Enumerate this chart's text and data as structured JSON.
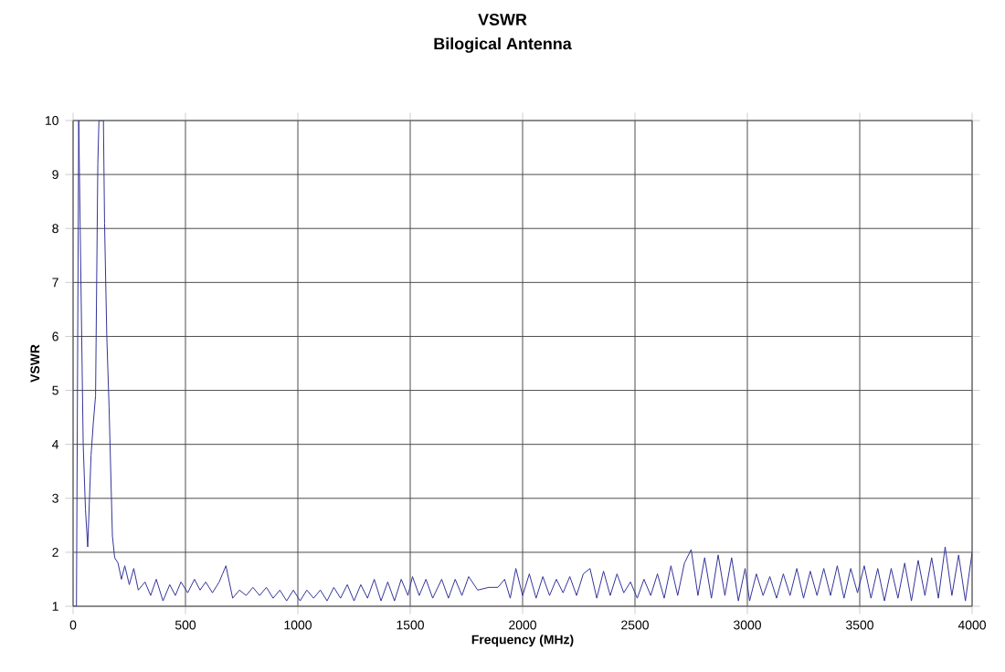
{
  "chart_data": {
    "type": "line",
    "title": "VSWR",
    "subtitle": "Bilogical Antenna",
    "xlabel": "Frequency (MHz)",
    "ylabel": "VSWR",
    "xlim": [
      0,
      4000
    ],
    "xticks": [
      0,
      500,
      1000,
      1500,
      2000,
      2500,
      3000,
      3500,
      4000
    ],
    "ylim": [
      1,
      10
    ],
    "yticks": [
      1,
      2,
      3,
      4,
      5,
      6,
      7,
      8,
      9,
      10
    ],
    "grid": true,
    "marker": "none",
    "line_style": "solid",
    "series": [
      {
        "color": "#333399",
        "x": [
          0,
          15,
          25,
          45,
          55,
          65,
          80,
          90,
          100,
          110,
          115,
          135,
          140,
          150,
          160,
          175,
          185,
          200,
          215,
          230,
          250,
          270,
          290,
          320,
          345,
          370,
          400,
          430,
          455,
          480,
          510,
          540,
          565,
          590,
          620,
          650,
          665,
          680,
          710,
          740,
          770,
          800,
          830,
          860,
          890,
          920,
          950,
          980,
          1010,
          1040,
          1070,
          1100,
          1130,
          1160,
          1190,
          1220,
          1250,
          1280,
          1310,
          1340,
          1370,
          1400,
          1430,
          1460,
          1490,
          1510,
          1540,
          1570,
          1600,
          1640,
          1670,
          1700,
          1730,
          1760,
          1800,
          1850,
          1890,
          1920,
          1945,
          1970,
          2000,
          2030,
          2060,
          2090,
          2120,
          2150,
          2180,
          2210,
          2240,
          2270,
          2300,
          2330,
          2360,
          2390,
          2420,
          2450,
          2480,
          2510,
          2540,
          2570,
          2600,
          2630,
          2660,
          2690,
          2720,
          2750,
          2780,
          2810,
          2840,
          2870,
          2900,
          2930,
          2960,
          2990,
          3010,
          3040,
          3070,
          3100,
          3130,
          3160,
          3190,
          3220,
          3250,
          3280,
          3310,
          3340,
          3370,
          3400,
          3430,
          3460,
          3490,
          3520,
          3550,
          3580,
          3610,
          3640,
          3670,
          3700,
          3730,
          3760,
          3790,
          3820,
          3850,
          3880,
          3910,
          3940,
          3970,
          4000
        ],
        "values": [
          1,
          1,
          10,
          4,
          2.8,
          2.1,
          3.8,
          4.4,
          4.9,
          9.2,
          10,
          10,
          8.1,
          6,
          4.7,
          2.3,
          1.9,
          1.8,
          1.5,
          1.75,
          1.4,
          1.7,
          1.3,
          1.45,
          1.2,
          1.5,
          1.1,
          1.4,
          1.2,
          1.45,
          1.25,
          1.5,
          1.3,
          1.45,
          1.25,
          1.45,
          1.6,
          1.75,
          1.15,
          1.3,
          1.2,
          1.35,
          1.2,
          1.35,
          1.15,
          1.3,
          1.1,
          1.3,
          1.1,
          1.3,
          1.15,
          1.3,
          1.1,
          1.35,
          1.15,
          1.4,
          1.1,
          1.4,
          1.15,
          1.5,
          1.1,
          1.45,
          1.1,
          1.5,
          1.2,
          1.55,
          1.2,
          1.5,
          1.15,
          1.5,
          1.15,
          1.5,
          1.2,
          1.55,
          1.3,
          1.35,
          1.35,
          1.5,
          1.15,
          1.7,
          1.2,
          1.6,
          1.15,
          1.55,
          1.2,
          1.5,
          1.25,
          1.55,
          1.2,
          1.6,
          1.7,
          1.15,
          1.65,
          1.2,
          1.6,
          1.25,
          1.45,
          1.15,
          1.5,
          1.2,
          1.6,
          1.15,
          1.75,
          1.2,
          1.8,
          2.05,
          1.2,
          1.9,
          1.15,
          1.95,
          1.2,
          1.9,
          1.1,
          1.7,
          1.1,
          1.6,
          1.2,
          1.55,
          1.15,
          1.6,
          1.2,
          1.7,
          1.15,
          1.65,
          1.2,
          1.7,
          1.2,
          1.75,
          1.15,
          1.7,
          1.25,
          1.75,
          1.15,
          1.7,
          1.1,
          1.7,
          1.15,
          1.8,
          1.1,
          1.85,
          1.2,
          1.9,
          1.15,
          2.1,
          1.2,
          1.95,
          1.1,
          2.0
        ]
      }
    ]
  }
}
